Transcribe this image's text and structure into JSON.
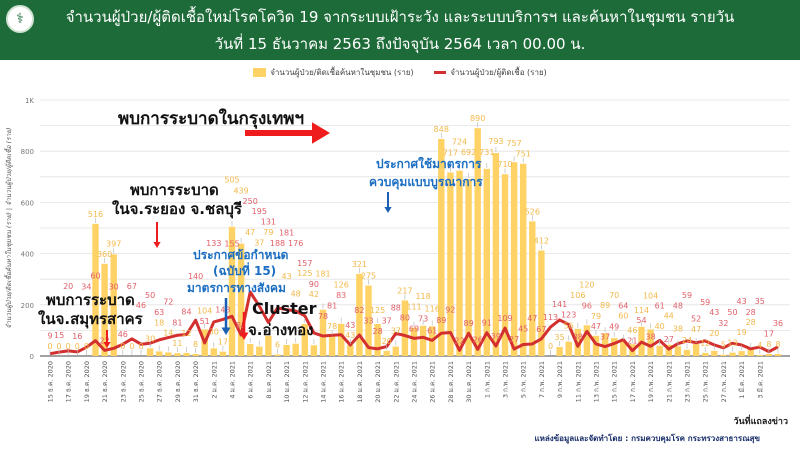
{
  "header": {
    "title_line1": "จำนวนผู้ป่วย/ผู้ติดเชื้อใหม่โรคโควิด 19 จากระบบเฝ้าระวัง และระบบบริการฯ และค้นหาในชุมชน รายวัน",
    "title_line2": "วันที่ 15 ธันวาคม 2563 ถึงปัจจุบัน 2564 เวลา 00.00 น.",
    "logo_icon": "caduceus-logo-icon"
  },
  "source": "แหล่งข้อมูลและจัดทำโดย : กรมควบคุมโรค กระทรวงสาธารณสุข",
  "chart_data": {
    "type": "bar+line",
    "title": "จำนวนผู้ป่วย/ผู้ติดเชื้อใหม่โรคโควิด 19 รายวัน",
    "xlabel": "วันที่แถลงข่าว",
    "ylabel": "จำนวนผู้ป่วย/ติดเชื้อค้นหาในชุมชน (ราย) | จำนวนผู้ป่วย/ผู้ติดเชื้อ (ราย)",
    "ylim": [
      0,
      1000
    ],
    "yticks": [
      {
        "v": 0,
        "label": "0"
      },
      {
        "v": 200,
        "label": "200"
      },
      {
        "v": 400,
        "label": "400"
      },
      {
        "v": 600,
        "label": "600"
      },
      {
        "v": 800,
        "label": "800"
      },
      {
        "v": 1000,
        "label": "1K"
      }
    ],
    "grid": true,
    "legend_position": "top-center",
    "colors": {
      "bar": "#ffd266",
      "bar_label": "#f2b94a",
      "line": "#d32f2f",
      "line_label": "#e0606a"
    },
    "series": [
      {
        "name": "จำนวนผู้ป่วย/ติดเชื้อค้นหาในชุมชน (ราย)",
        "type": "bar",
        "values": [
          0,
          0,
          0,
          0,
          0,
          516,
          360,
          397,
          0,
          0,
          0,
          30,
          18,
          14,
          11,
          12,
          8,
          104,
          30,
          17,
          505,
          439,
          47,
          37,
          79,
          6,
          43,
          48,
          125,
          42,
          181,
          78,
          126,
          43,
          321,
          275,
          125,
          20,
          37,
          217,
          111,
          118,
          116,
          848,
          717,
          724,
          692,
          890,
          731,
          793,
          710,
          757,
          751,
          526,
          412,
          0,
          35,
          56,
          106,
          120,
          79,
          89,
          70,
          60,
          46,
          114,
          104,
          40,
          44,
          38,
          24,
          47,
          12,
          20,
          5,
          13,
          19,
          28,
          4,
          8,
          8
        ]
      },
      {
        "name": "จำนวนผู้ป่วย/ผู้ติดเชื้อ (ราย)",
        "type": "line",
        "values": [
          9,
          15,
          20,
          16,
          34,
          60,
          22,
          30,
          46,
          67,
          46,
          50,
          63,
          72,
          81,
          84,
          140,
          51,
          133,
          143,
          155,
          82,
          250,
          195,
          131,
          188,
          181,
          176,
          157,
          90,
          78,
          81,
          83,
          43,
          82,
          33,
          28,
          37,
          88,
          80,
          69,
          73,
          61,
          89,
          92,
          22,
          89,
          26,
          91,
          39,
          109,
          27,
          45,
          47,
          67,
          113,
          141,
          123,
          38,
          96,
          47,
          37,
          49,
          64,
          21,
          54,
          38,
          61,
          27,
          48,
          59,
          52,
          59,
          43,
          32,
          50,
          43,
          28,
          35,
          17,
          36
        ]
      }
    ],
    "x_tick_labels": [
      "15 ธ.ค. 2020",
      "17 ธ.ค. 2020",
      "19 ธ.ค. 2020",
      "21 ธ.ค. 2020",
      "23 ธ.ค. 2020",
      "25 ธ.ค. 2020",
      "27 ธ.ค. 2020",
      "29 ธ.ค. 2020",
      "31 ธ.ค. 2020",
      "2 ม.ค. 2021",
      "4 ม.ค. 2021",
      "6 ม.ค. 2021",
      "8 ม.ค. 2021",
      "10 ม.ค. 2021",
      "12 ม.ค. 2021",
      "14 ม.ค. 2021",
      "16 ม.ค. 2021",
      "18 ม.ค. 2021",
      "20 ม.ค. 2021",
      "22 ม.ค. 2021",
      "24 ม.ค. 2021",
      "26 ม.ค. 2021",
      "28 ม.ค. 2021",
      "30 ม.ค. 2021",
      "1 ก.พ. 2021",
      "3 ก.พ. 2021",
      "5 ก.พ. 2021",
      "7 ก.พ. 2021",
      "9 ก.พ. 2021",
      "11 ก.พ. 2021",
      "13 ก.พ. 2021",
      "15 ก.พ. 2021",
      "17 ก.พ. 2021",
      "19 ก.พ. 2021",
      "21 ก.พ. 2021",
      "23 ก.พ. 2021",
      "25 ก.พ. 2021",
      "27 ก.พ. 2021",
      "1 มี.ค. 2021",
      "3 มี.ค. 2021"
    ],
    "annotations": {
      "bangkok": "พบการระบาดในกรุงเทพฯ",
      "rayong_1": "พบการระบาด",
      "rayong_2": "ในจ.ระยอง จ.ชลบุรี",
      "samut_1": "พบการระบาด",
      "samut_2": "ในจ.สมุทรสาคร",
      "decree_1": "ประกาศข้อกำหนด",
      "decree_2": "(ฉบับที่ 15)",
      "decree_3": "มาตรการทางสังคม",
      "cluster_1": "Cluster",
      "cluster_2": "จ.อ่างทอง",
      "integrated_1": "ประกาศใช้มาตรการ",
      "integrated_2": "ควบคุมแบบบูรณาการ"
    }
  }
}
